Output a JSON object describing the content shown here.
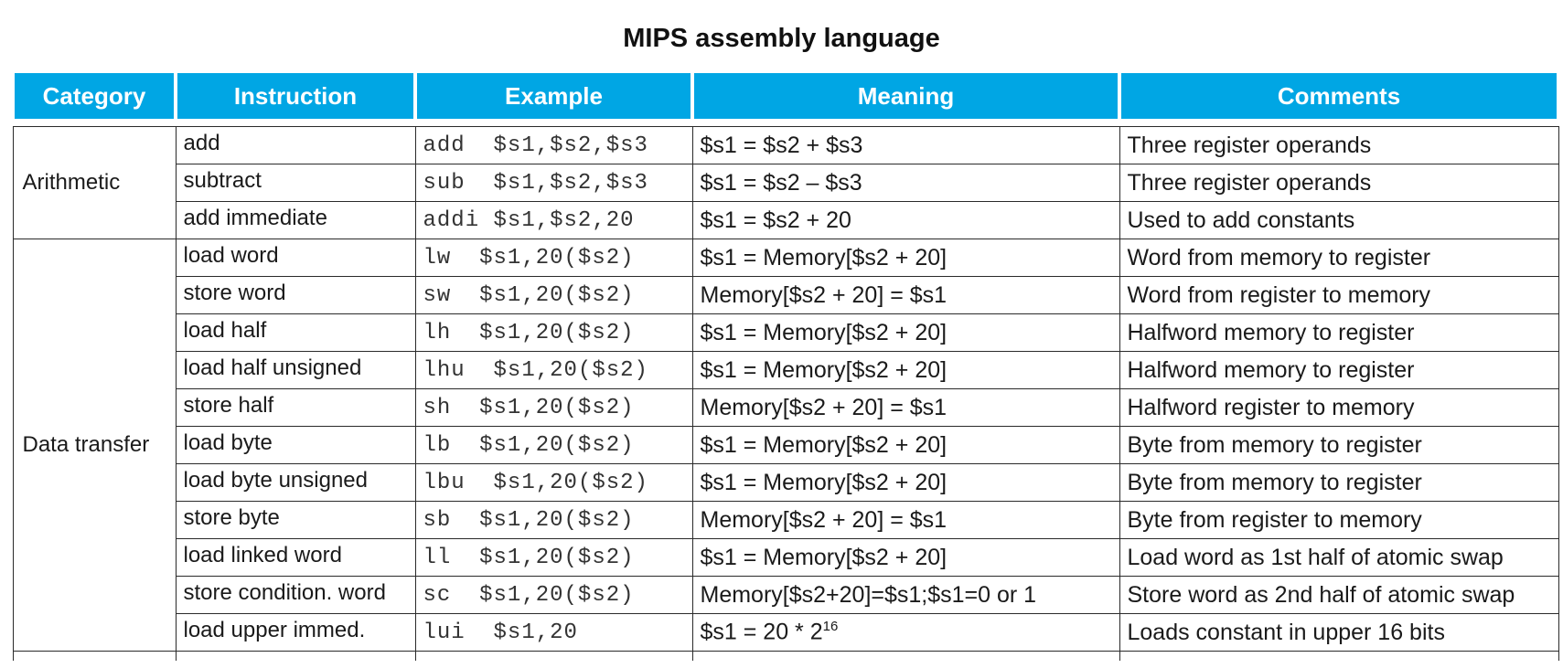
{
  "title": "MIPS assembly language",
  "headers": [
    "Category",
    "Instruction",
    "Example",
    "Meaning",
    "Comments"
  ],
  "categories": [
    {
      "label": "Arithmetic",
      "rows": [
        {
          "instruction": "add",
          "example": "add  $s1,$s2,$s3",
          "meaning": "$s1 = $s2 + $s3",
          "comment": "Three register operands"
        },
        {
          "instruction": "subtract",
          "example": "sub  $s1,$s2,$s3",
          "meaning": "$s1 = $s2 – $s3",
          "comment": "Three register operands"
        },
        {
          "instruction": "add immediate",
          "example": "addi $s1,$s2,20",
          "meaning": "$s1 = $s2 + 20",
          "comment": "Used to add constants"
        }
      ]
    },
    {
      "label": "Data transfer",
      "rows": [
        {
          "instruction": "load word",
          "example": "lw  $s1,20($s2)",
          "meaning": "$s1 = Memory[$s2 + 20]",
          "comment": "Word from memory to register"
        },
        {
          "instruction": "store word",
          "example": "sw  $s1,20($s2)",
          "meaning": "Memory[$s2 + 20] = $s1",
          "comment": "Word from register to memory"
        },
        {
          "instruction": "load half",
          "example": "lh  $s1,20($s2)",
          "meaning": "$s1 = Memory[$s2 + 20]",
          "comment": "Halfword memory to register"
        },
        {
          "instruction": "load half unsigned",
          "example": "lhu  $s1,20($s2)",
          "meaning": "$s1 = Memory[$s2 + 20]",
          "comment": "Halfword memory to register"
        },
        {
          "instruction": "store half",
          "example": "sh  $s1,20($s2)",
          "meaning": "Memory[$s2 + 20] = $s1",
          "comment": "Halfword register to memory"
        },
        {
          "instruction": "load byte",
          "example": "lb  $s1,20($s2)",
          "meaning": "$s1 = Memory[$s2 + 20]",
          "comment": "Byte from memory to register"
        },
        {
          "instruction": "load byte unsigned",
          "example": "lbu  $s1,20($s2)",
          "meaning": "$s1 = Memory[$s2 + 20]",
          "comment": "Byte from memory to register"
        },
        {
          "instruction": "store byte",
          "example": "sb  $s1,20($s2)",
          "meaning": "Memory[$s2 + 20] = $s1",
          "comment": "Byte from register to memory"
        },
        {
          "instruction": "load linked word",
          "example": "ll  $s1,20($s2)",
          "meaning": "$s1 = Memory[$s2 + 20]",
          "comment": "Load word as 1st half of atomic swap"
        },
        {
          "instruction": "store condition. word",
          "example": "sc  $s1,20($s2)",
          "meaning": "Memory[$s2+20]=$s1;$s1=0 or 1",
          "comment": "Store word as 2nd half of atomic swap"
        },
        {
          "instruction": "load upper immed.",
          "example": "lui  $s1,20",
          "meaning": "$s1 = 20 * 2",
          "meaning_sup": "16",
          "comment": "Loads constant in upper 16 bits"
        }
      ]
    }
  ],
  "colors": {
    "header_bg": "#00a6e4",
    "header_text": "#ffffff",
    "border": "#2a2a2a"
  }
}
